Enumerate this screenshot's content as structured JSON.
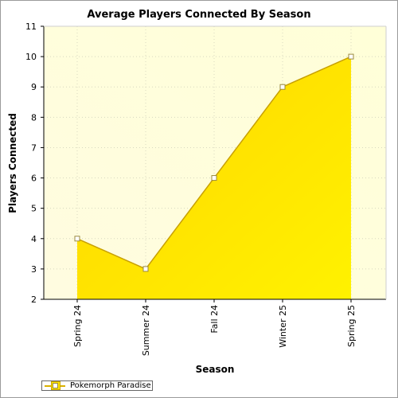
{
  "chart_data": {
    "type": "area",
    "title": "Average Players Connected By Season",
    "xlabel": "Season",
    "ylabel": "Players Connected",
    "categories": [
      "Spring 24",
      "Summer 24",
      "Fall 24",
      "Winter 25",
      "Spring 25"
    ],
    "series": [
      {
        "name": "Pokemorph Paradise",
        "values": [
          4,
          3,
          6,
          9,
          10
        ]
      }
    ],
    "ylim": [
      2,
      11
    ],
    "yticks": [
      2,
      3,
      4,
      5,
      6,
      7,
      8,
      9,
      10,
      11
    ],
    "grid": true,
    "legend": "bottom-left",
    "colors": {
      "fill_light": "#ffe14d",
      "fill_dark": "#ffd700",
      "line": "#d4aa00",
      "plot_bg": "#ffffe8"
    }
  }
}
